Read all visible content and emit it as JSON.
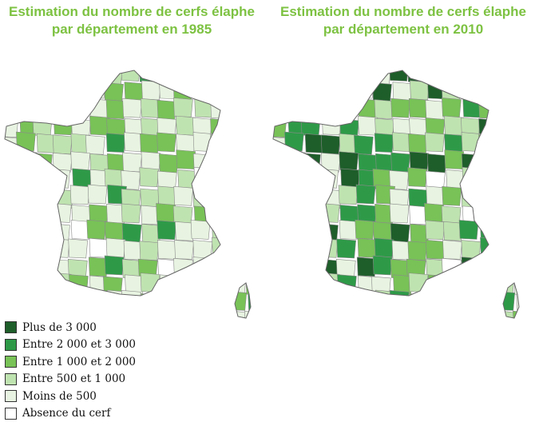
{
  "titles": {
    "left": "Estimation du nombre de cerfs élaphe par département en 1985",
    "right": "Estimation du nombre de cerfs élaphe par département en 2010"
  },
  "maps": [
    {
      "year": "1985",
      "icon": "france-departments-map-icon",
      "distribution": {
        "plus_3000": 0,
        "c2000_3000": 0.05,
        "c1000_2000": 0.2,
        "c500_1000": 0.25,
        "moins_500": 0.46,
        "absence": 0.04
      }
    },
    {
      "year": "2010",
      "icon": "france-departments-map-icon",
      "distribution": {
        "plus_3000": 0.22,
        "c2000_3000": 0.2,
        "c1000_2000": 0.2,
        "c500_1000": 0.16,
        "moins_500": 0.17,
        "absence": 0.05
      }
    }
  ],
  "legend": {
    "items": [
      {
        "key": "plus_3000",
        "label": "Plus de 3 000",
        "color": "#1e5e2a"
      },
      {
        "key": "c2000_3000",
        "label": "Entre 2 000 et 3 000",
        "color": "#2e9a48"
      },
      {
        "key": "c1000_2000",
        "label": "Entre 1 000 et 2 000",
        "color": "#78c257"
      },
      {
        "key": "c500_1000",
        "label": "Entre 500 et 1 000",
        "color": "#bfe3b0"
      },
      {
        "key": "moins_500",
        "label": "Moins de 500",
        "color": "#e8f4e1"
      },
      {
        "key": "absence",
        "label": "Absence du cerf",
        "color": "#ffffff"
      }
    ]
  }
}
